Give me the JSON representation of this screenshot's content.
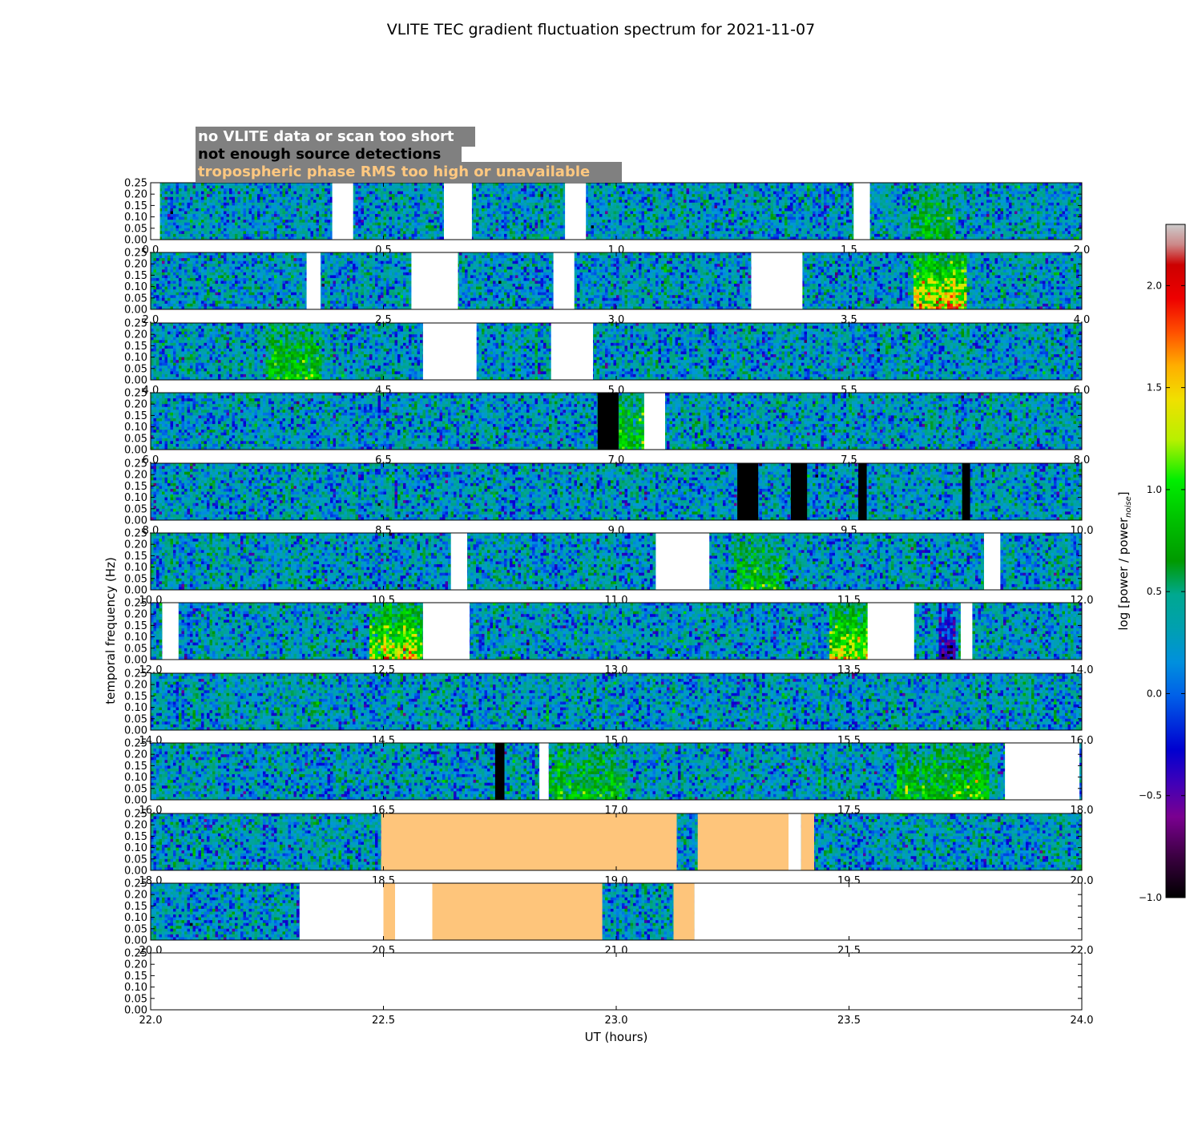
{
  "chart_data": {
    "type": "heatmap",
    "title": "VLITE TEC gradient fluctuation spectrum for 2021-11-07",
    "xlabel": "UT (hours)",
    "ylabel": "temporal frequency (Hz)",
    "colorbar_label_prefix": "log [power / power",
    "colorbar_label_sub": "noise",
    "colorbar_label_suffix": "]",
    "ylim": [
      0,
      0.25
    ],
    "y_ticks": [
      "0.00",
      "0.05",
      "0.10",
      "0.15",
      "0.20",
      "0.25"
    ],
    "colorbar_range": [
      -1.0,
      2.3
    ],
    "colorbar_ticks": [
      "2.0",
      "1.5",
      "1.0",
      "0.5",
      "0.0",
      "−0.5",
      "−1.0"
    ],
    "colorbar_tick_values": [
      2.0,
      1.5,
      1.0,
      0.5,
      0.0,
      -0.5,
      -1.0
    ],
    "legend": {
      "position": "top-left",
      "entries": [
        {
          "label": "no VLITE data or scan too short",
          "text_color": "#ffffff",
          "box_color": "#808080"
        },
        {
          "label": "not enough source detections",
          "text_color": "#000000",
          "box_color": "#808080"
        },
        {
          "label": "tropospheric phase RMS too high or unavailable",
          "text_color": "#ffc880",
          "box_color": "#808080"
        }
      ]
    },
    "flag_colors": {
      "no_data": "#ffffff",
      "not_enough_detections": "#000000",
      "tropo_rms_high": "#fec57b"
    },
    "panels": [
      {
        "xlim": [
          0,
          2
        ],
        "x_ticks": [
          "0.0",
          "0.5",
          "1.0",
          "1.5",
          "2.0"
        ],
        "flags": [
          {
            "type": "no_data",
            "start": 0.0,
            "end": 0.02
          },
          {
            "type": "no_data",
            "start": 0.39,
            "end": 0.435
          },
          {
            "type": "no_data",
            "start": 0.63,
            "end": 0.69
          },
          {
            "type": "no_data",
            "start": 0.89,
            "end": 0.935
          },
          {
            "type": "no_data",
            "start": 1.51,
            "end": 1.545
          }
        ],
        "hotspots": [
          {
            "start": 1.63,
            "end": 1.73,
            "value": 0.6
          }
        ]
      },
      {
        "xlim": [
          2,
          4
        ],
        "x_ticks": [
          "2.0",
          "2.5",
          "3.0",
          "3.5",
          "4.0"
        ],
        "flags": [
          {
            "type": "no_data",
            "start": 2.335,
            "end": 2.365
          },
          {
            "type": "no_data",
            "start": 2.56,
            "end": 2.66
          },
          {
            "type": "no_data",
            "start": 2.865,
            "end": 2.91
          },
          {
            "type": "no_data",
            "start": 3.29,
            "end": 3.4
          }
        ],
        "hotspots": [
          {
            "start": 3.64,
            "end": 3.75,
            "value": 1.6
          }
        ]
      },
      {
        "xlim": [
          4,
          6
        ],
        "x_ticks": [
          "4.0",
          "4.5",
          "5.0",
          "5.5",
          "6.0"
        ],
        "flags": [
          {
            "type": "no_data",
            "start": 4.585,
            "end": 4.7
          },
          {
            "type": "no_data",
            "start": 4.86,
            "end": 4.95
          }
        ],
        "hotspots": [
          {
            "start": 4.25,
            "end": 4.37,
            "value": 0.8
          }
        ]
      },
      {
        "xlim": [
          6,
          8
        ],
        "x_ticks": [
          "6.0",
          "6.5",
          "7.0",
          "7.5",
          "8.0"
        ],
        "flags": [
          {
            "type": "not_enough_detections",
            "start": 6.96,
            "end": 7.005
          },
          {
            "type": "no_data",
            "start": 7.06,
            "end": 7.105
          }
        ],
        "hotspots": [
          {
            "start": 7.005,
            "end": 7.06,
            "value": 0.8
          }
        ]
      },
      {
        "xlim": [
          8,
          10
        ],
        "x_ticks": [
          "8.0",
          "8.5",
          "9.0",
          "9.5",
          "10.0"
        ],
        "flags": [
          {
            "type": "not_enough_detections",
            "start": 9.26,
            "end": 9.305
          },
          {
            "type": "not_enough_detections",
            "start": 9.375,
            "end": 9.41
          },
          {
            "type": "not_enough_detections",
            "start": 9.52,
            "end": 9.538
          },
          {
            "type": "not_enough_detections",
            "start": 9.743,
            "end": 9.76
          }
        ],
        "hotspots": []
      },
      {
        "xlim": [
          10,
          12
        ],
        "x_ticks": [
          "10.0",
          "10.5",
          "11.0",
          "11.5",
          "12.0"
        ],
        "flags": [
          {
            "type": "no_data",
            "start": 10.645,
            "end": 10.68
          },
          {
            "type": "no_data",
            "start": 11.085,
            "end": 11.2
          },
          {
            "type": "no_data",
            "start": 11.79,
            "end": 11.825
          }
        ],
        "hotspots": [
          {
            "start": 11.26,
            "end": 11.36,
            "value": 0.7
          }
        ]
      },
      {
        "xlim": [
          12,
          14
        ],
        "x_ticks": [
          "12.0",
          "12.5",
          "13.0",
          "13.5",
          "14.0"
        ],
        "flags": [
          {
            "type": "no_data",
            "start": 12.025,
            "end": 12.06
          },
          {
            "type": "no_data",
            "start": 12.585,
            "end": 12.685
          },
          {
            "type": "no_data",
            "start": 13.54,
            "end": 13.64
          },
          {
            "type": "no_data",
            "start": 13.74,
            "end": 13.765
          }
        ],
        "hotspots": [
          {
            "start": 12.47,
            "end": 12.585,
            "value": 1.4
          },
          {
            "start": 13.46,
            "end": 13.54,
            "value": 1.3
          },
          {
            "start": 13.69,
            "end": 13.73,
            "value": -0.9
          }
        ]
      },
      {
        "xlim": [
          14,
          16
        ],
        "x_ticks": [
          "14.0",
          "14.5",
          "15.0",
          "15.5",
          "16.0"
        ],
        "flags": [],
        "hotspots": []
      },
      {
        "xlim": [
          16,
          18
        ],
        "x_ticks": [
          "16.0",
          "16.5",
          "17.0",
          "17.5",
          "18.0"
        ],
        "flags": [
          {
            "type": "not_enough_detections",
            "start": 16.74,
            "end": 16.76
          },
          {
            "type": "no_data",
            "start": 16.835,
            "end": 16.855
          },
          {
            "type": "no_data",
            "start": 17.835,
            "end": 17.995
          }
        ],
        "hotspots": [
          {
            "start": 16.855,
            "end": 17.02,
            "value": 0.7
          },
          {
            "start": 17.6,
            "end": 17.8,
            "value": 0.8
          }
        ]
      },
      {
        "xlim": [
          18,
          20
        ],
        "x_ticks": [
          "18.0",
          "18.5",
          "19.0",
          "19.5",
          "20.0"
        ],
        "flags": [
          {
            "type": "tropo_rms_high",
            "start": 18.495,
            "end": 19.13
          },
          {
            "type": "tropo_rms_high",
            "start": 19.175,
            "end": 19.37
          },
          {
            "type": "no_data",
            "start": 19.37,
            "end": 19.397
          },
          {
            "type": "tropo_rms_high",
            "start": 19.397,
            "end": 19.425
          }
        ],
        "hotspots": []
      },
      {
        "xlim": [
          20,
          22
        ],
        "x_ticks": [
          "20.0",
          "20.5",
          "21.0",
          "21.5",
          "22.0"
        ],
        "flags": [
          {
            "type": "no_data",
            "start": 20.32,
            "end": 20.5
          },
          {
            "type": "tropo_rms_high",
            "start": 20.5,
            "end": 20.525
          },
          {
            "type": "no_data",
            "start": 20.525,
            "end": 20.605
          },
          {
            "type": "tropo_rms_high",
            "start": 20.605,
            "end": 20.97
          },
          {
            "type": "tropo_rms_high",
            "start": 21.123,
            "end": 21.168
          },
          {
            "type": "no_data",
            "start": 21.168,
            "end": 22.0
          }
        ],
        "hotspots": []
      },
      {
        "xlim": [
          22,
          24
        ],
        "x_ticks": [
          "22.0",
          "22.5",
          "23.0",
          "23.5",
          "24.0"
        ],
        "flags": [
          {
            "type": "no_data",
            "start": 22.0,
            "end": 24.0
          }
        ],
        "hotspots": []
      }
    ]
  }
}
